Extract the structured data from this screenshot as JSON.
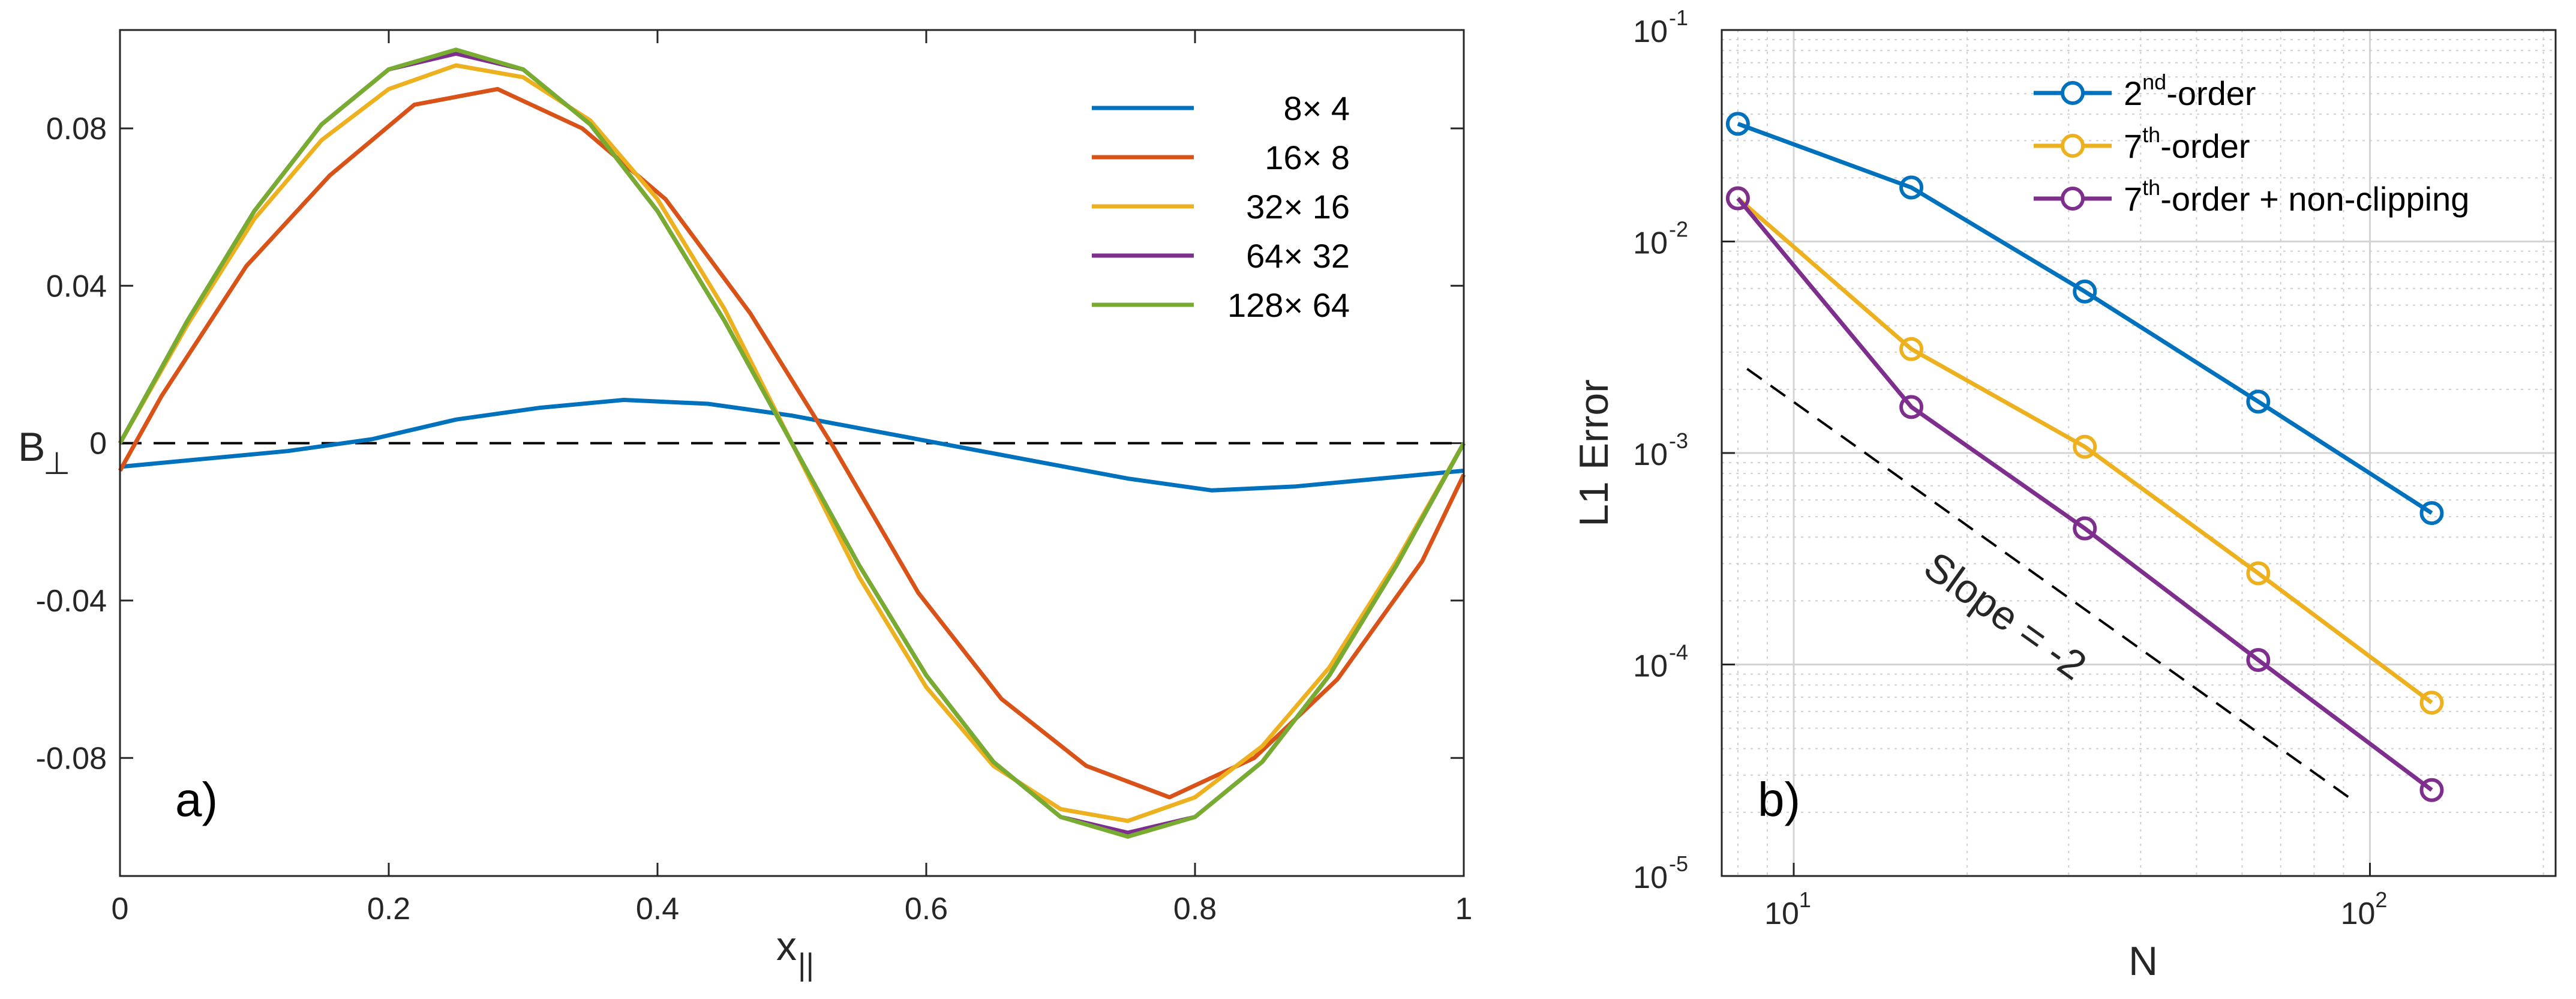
{
  "chart_data": [
    {
      "type": "line",
      "panel_label": "a)",
      "xlabel": "x",
      "xlabel_sub": "||",
      "ylabel": "B",
      "ylabel_sub": "⊥",
      "xlim": [
        0,
        1
      ],
      "ylim": [
        -0.11,
        0.105
      ],
      "xticks": [
        0,
        0.2,
        0.4,
        0.6,
        0.8,
        1
      ],
      "xtick_labels": [
        "0",
        "0.2",
        "0.4",
        "0.6",
        "0.8",
        "1"
      ],
      "yticks": [
        0.08,
        0.04,
        0,
        -0.04,
        -0.08
      ],
      "ytick_labels": [
        "0.08",
        "0.04",
        "0",
        "-0.04",
        "-0.08"
      ],
      "grid": false,
      "legend_position": "top-right",
      "reference_line": {
        "y": 0,
        "style": "dashed",
        "color": "#000000"
      },
      "series": [
        {
          "name": "8× 4",
          "color": "#0072BD",
          "x": [
            0,
            0.0625,
            0.125,
            0.1875,
            0.25,
            0.3125,
            0.375,
            0.4375,
            0.5,
            0.5625,
            0.625,
            0.6875,
            0.75,
            0.8125,
            0.875,
            0.9375,
            1
          ],
          "y": [
            -0.006,
            -0.004,
            -0.002,
            0.001,
            0.006,
            0.009,
            0.011,
            0.01,
            0.007,
            0.003,
            -0.001,
            -0.005,
            -0.009,
            -0.012,
            -0.011,
            -0.009,
            -0.007
          ]
        },
        {
          "name": "16× 8",
          "color": "#D95319",
          "x": [
            0,
            0.031,
            0.094,
            0.156,
            0.219,
            0.281,
            0.344,
            0.406,
            0.469,
            0.531,
            0.594,
            0.656,
            0.719,
            0.781,
            0.844,
            0.906,
            0.969,
            1
          ],
          "y": [
            -0.007,
            0.012,
            0.045,
            0.068,
            0.086,
            0.09,
            0.08,
            0.062,
            0.033,
            -0.001,
            -0.038,
            -0.065,
            -0.082,
            -0.09,
            -0.08,
            -0.06,
            -0.03,
            -0.008
          ]
        },
        {
          "name": "32× 16",
          "color": "#EDB120",
          "x": [
            0,
            0.05,
            0.1,
            0.15,
            0.2,
            0.25,
            0.3,
            0.35,
            0.4,
            0.45,
            0.5,
            0.55,
            0.6,
            0.65,
            0.7,
            0.75,
            0.8,
            0.85,
            0.9,
            0.95,
            1
          ],
          "y": [
            0,
            0.03,
            0.057,
            0.077,
            0.09,
            0.096,
            0.093,
            0.082,
            0.062,
            0.034,
            0,
            -0.034,
            -0.062,
            -0.082,
            -0.093,
            -0.096,
            -0.09,
            -0.077,
            -0.057,
            -0.03,
            0
          ]
        },
        {
          "name": "64× 32",
          "color": "#7E2F8E",
          "x": [
            0,
            0.05,
            0.1,
            0.15,
            0.2,
            0.25,
            0.3,
            0.35,
            0.4,
            0.45,
            0.5,
            0.55,
            0.6,
            0.65,
            0.7,
            0.75,
            0.8,
            0.85,
            0.9,
            0.95,
            1
          ],
          "y": [
            0,
            0.031,
            0.059,
            0.081,
            0.095,
            0.099,
            0.095,
            0.081,
            0.059,
            0.031,
            0,
            -0.031,
            -0.059,
            -0.081,
            -0.095,
            -0.099,
            -0.095,
            -0.081,
            -0.059,
            -0.031,
            0
          ]
        },
        {
          "name": "128× 64",
          "color": "#77AC30",
          "x": [
            0,
            0.05,
            0.1,
            0.15,
            0.2,
            0.25,
            0.3,
            0.35,
            0.4,
            0.45,
            0.5,
            0.55,
            0.6,
            0.65,
            0.7,
            0.75,
            0.8,
            0.85,
            0.9,
            0.95,
            1
          ],
          "y": [
            0,
            0.031,
            0.059,
            0.081,
            0.095,
            0.1,
            0.095,
            0.081,
            0.059,
            0.031,
            0,
            -0.031,
            -0.059,
            -0.081,
            -0.095,
            -0.1,
            -0.095,
            -0.081,
            -0.059,
            -0.031,
            0
          ]
        }
      ]
    },
    {
      "type": "line",
      "panel_label": "b)",
      "xlabel": "N",
      "ylabel": "L1 Error",
      "xscale": "log",
      "yscale": "log",
      "xlim": [
        7.5,
        210
      ],
      "ylim": [
        1e-05,
        0.1
      ],
      "xticks": [
        10,
        100
      ],
      "xtick_labels": [
        {
          "base": "10",
          "exp": "1"
        },
        {
          "base": "10",
          "exp": "2"
        }
      ],
      "yticks": [
        0.1,
        0.01,
        0.001,
        0.0001,
        1e-05
      ],
      "ytick_labels": [
        {
          "base": "10",
          "exp": "-1"
        },
        {
          "base": "10",
          "exp": "-2"
        },
        {
          "base": "10",
          "exp": "-3"
        },
        {
          "base": "10",
          "exp": "-4"
        },
        {
          "base": "10",
          "exp": "-5"
        }
      ],
      "grid": true,
      "legend_position": "top-right",
      "marker": "circle",
      "series": [
        {
          "name": "2nd-order",
          "legend": {
            "pre": "2",
            "sup": "nd",
            "post": "-order"
          },
          "color": "#0072BD",
          "x": [
            8,
            16,
            32,
            64,
            128
          ],
          "y": [
            0.036,
            0.018,
            0.0058,
            0.00175,
            0.00052
          ]
        },
        {
          "name": "7th-order",
          "legend": {
            "pre": "7",
            "sup": "th",
            "post": "-order"
          },
          "color": "#EDB120",
          "x": [
            8,
            16,
            32,
            64,
            128
          ],
          "y": [
            0.016,
            0.0031,
            0.00107,
            0.00027,
            6.6e-05
          ]
        },
        {
          "name": "7th-order + non-clipping",
          "legend": {
            "pre": "7",
            "sup": "th",
            "post": "-order + non-clipping"
          },
          "color": "#7E2F8E",
          "x": [
            8,
            16,
            32,
            64,
            128
          ],
          "y": [
            0.016,
            0.00165,
            0.00044,
            0.000105,
            2.55e-05
          ]
        }
      ],
      "reference_line": {
        "label": "Slope = -2",
        "x": [
          8.3,
          92
        ],
        "y": [
          0.0025,
          2.35e-05
        ],
        "style": "dashed",
        "color": "#000000"
      }
    }
  ]
}
